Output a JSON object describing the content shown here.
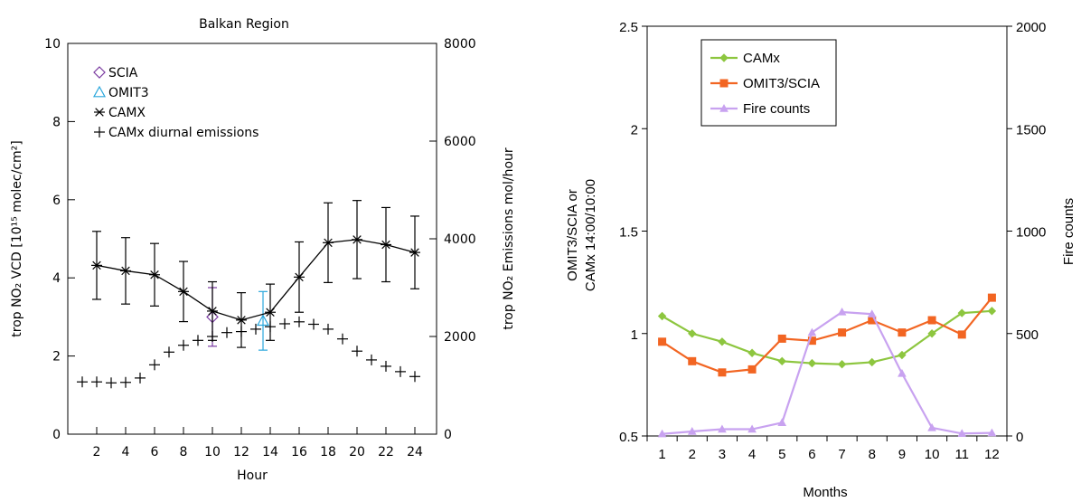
{
  "chart_data": [
    {
      "type": "line",
      "title": "Balkan Region",
      "xlabel": "Hour",
      "ylabel": "trop NO₂ VCD [10¹⁵ molec/cm²]",
      "y2label": "trop NO₂ Emissions mol/hour",
      "xlim": [
        0,
        25.5
      ],
      "ylim": [
        0,
        10
      ],
      "y2lim": [
        0,
        8000
      ],
      "xticks": [
        2,
        4,
        6,
        8,
        10,
        12,
        14,
        16,
        18,
        20,
        22,
        24
      ],
      "yticks": [
        0,
        2,
        4,
        6,
        8,
        10
      ],
      "y2ticks": [
        0,
        2000,
        4000,
        6000,
        8000
      ],
      "grid": false,
      "legend_position": "top-left",
      "series": [
        {
          "name": "SCIA",
          "axis": "left",
          "color": "#7a3aa0",
          "marker": "diamond",
          "x": [
            10
          ],
          "y": [
            3.0
          ],
          "yerr": [
            0.75
          ]
        },
        {
          "name": "OMIT3",
          "axis": "left",
          "color": "#2aa7dc",
          "marker": "triangle",
          "x": [
            13.5
          ],
          "y": [
            2.9
          ],
          "yerr": [
            0.75
          ]
        },
        {
          "name": "CAMX",
          "axis": "left",
          "color": "#000000",
          "marker": "asterisk",
          "x": [
            2,
            4,
            6,
            8,
            10,
            12,
            14,
            16,
            18,
            20,
            22,
            24
          ],
          "y": [
            4.32,
            4.18,
            4.08,
            3.65,
            3.15,
            2.92,
            3.12,
            4.02,
            4.9,
            4.98,
            4.85,
            4.65
          ],
          "yerr": [
            0.87,
            0.85,
            0.8,
            0.77,
            0.75,
            0.7,
            0.72,
            0.9,
            1.02,
            1.0,
            0.95,
            0.93
          ]
        },
        {
          "name": "CAMx diurnal emissions",
          "axis": "right",
          "color": "#000000",
          "marker": "plus",
          "x": [
            1,
            2,
            3,
            4,
            5,
            6,
            7,
            8,
            9,
            10,
            11,
            12,
            13,
            14,
            15,
            16,
            17,
            18,
            19,
            20,
            21,
            22,
            23,
            24
          ],
          "y": [
            1070,
            1070,
            1050,
            1060,
            1150,
            1420,
            1680,
            1820,
            1920,
            2000,
            2080,
            2100,
            2150,
            2200,
            2260,
            2300,
            2250,
            2150,
            1950,
            1700,
            1520,
            1390,
            1280,
            1180
          ]
        }
      ]
    },
    {
      "type": "line",
      "title": "",
      "xlabel": "Months",
      "ylabel": "OMIT3/SCIA or CAMx 14:00/10:00",
      "y2label": "Fire counts",
      "categories": [
        "1",
        "2",
        "3",
        "4",
        "5",
        "6",
        "7",
        "8",
        "9",
        "10",
        "11",
        "12"
      ],
      "ylim": [
        0.5,
        2.5
      ],
      "y2lim": [
        0,
        2000
      ],
      "yticks": [
        "0.5",
        "1",
        "1.5",
        "2",
        "2.5"
      ],
      "y2ticks": [
        "0",
        "500",
        "1000",
        "1500",
        "2000"
      ],
      "grid": false,
      "legend_position": "top-left",
      "series": [
        {
          "name": "CAMx",
          "axis": "left",
          "color": "#8dc63f",
          "marker": "diamond",
          "values": [
            1.085,
            1.0,
            0.96,
            0.905,
            0.865,
            0.855,
            0.85,
            0.86,
            0.895,
            1.0,
            1.1,
            1.11
          ]
        },
        {
          "name": "OMIT3/SCIA",
          "axis": "left",
          "color": "#f26522",
          "marker": "square",
          "values": [
            0.96,
            0.865,
            0.81,
            0.825,
            0.975,
            0.965,
            1.005,
            1.065,
            1.005,
            1.065,
            0.995,
            1.175
          ]
        },
        {
          "name": "Fire counts",
          "axis": "right",
          "color": "#c8a2f0",
          "marker": "triangle",
          "values": [
            10,
            22,
            33,
            33,
            65,
            505,
            605,
            595,
            305,
            40,
            12,
            15
          ]
        }
      ]
    }
  ]
}
